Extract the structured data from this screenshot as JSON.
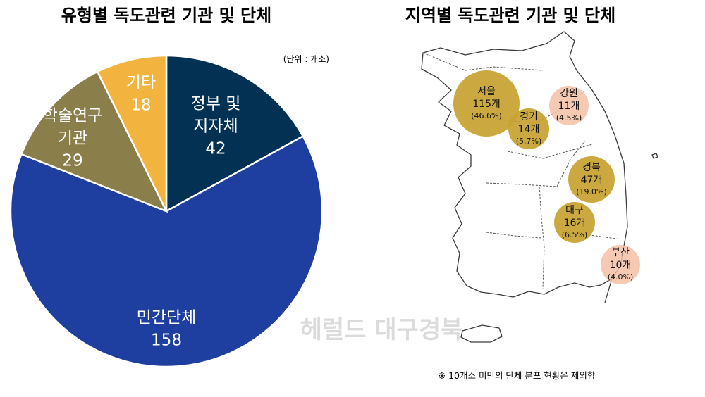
{
  "colors": {
    "gov": "#033154",
    "civil": "#1e3fa0",
    "academic": "#8a7f4b",
    "other": "#f2b43e",
    "bubble_large": "#c7a331",
    "bubble_small": "#f3c0a4",
    "map_line": "#3a3a3a"
  },
  "chart_data": [
    {
      "type": "pie",
      "title": "유형별 독도관련 기관 및 단체",
      "unit_note": "(단위 : 개소)",
      "slices": [
        {
          "key": "gov",
          "label_lines": [
            "정부 및",
            "지자체"
          ],
          "value": 42,
          "value_text": "42",
          "color": "#033154"
        },
        {
          "key": "civil",
          "label_lines": [
            "민간단체"
          ],
          "value": 158,
          "value_text": "158",
          "color": "#1e3fa0"
        },
        {
          "key": "academic",
          "label_lines": [
            "학술연구",
            "기관"
          ],
          "value": 29,
          "value_text": "29",
          "color": "#8a7f4b"
        },
        {
          "key": "other",
          "label_lines": [
            "기타"
          ],
          "value": 18,
          "value_text": "18",
          "color": "#f2b43e"
        }
      ]
    },
    {
      "type": "bubble-map",
      "title": "지역별 독도관련 기관 및 단체",
      "regions": [
        {
          "name": "서울",
          "count": 115,
          "count_text": "115개",
          "pct_text": "(46.6%)",
          "size": "large"
        },
        {
          "name": "경기",
          "count": 14,
          "count_text": "14개",
          "pct_text": "(5.7%)",
          "size": "large"
        },
        {
          "name": "강원",
          "count": 11,
          "count_text": "11개",
          "pct_text": "(4.5%)",
          "size": "small"
        },
        {
          "name": "경북",
          "count": 47,
          "count_text": "47개",
          "pct_text": "(19.0%)",
          "size": "large"
        },
        {
          "name": "대구",
          "count": 16,
          "count_text": "16개",
          "pct_text": "(6.5%)",
          "size": "large"
        },
        {
          "name": "부산",
          "count": 10,
          "count_text": "10개",
          "pct_text": "(4.0%)",
          "size": "small"
        }
      ],
      "footnote": "※ 10개소 미만의 단체 분포 현황은 제외함"
    }
  ],
  "watermark": "헤럴드 대구경북"
}
